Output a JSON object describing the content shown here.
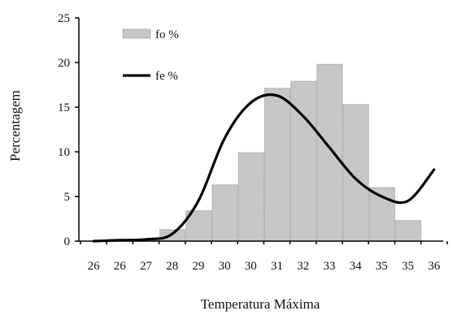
{
  "chart_data": {
    "type": "bar",
    "title": "",
    "xlabel": "Temperatura Máxima",
    "ylabel": "Percentagem",
    "ylim": [
      0,
      25
    ],
    "yticks": [
      0,
      5,
      10,
      15,
      20,
      25
    ],
    "categories": [
      "26",
      "26",
      "27",
      "28",
      "29",
      "30",
      "30",
      "31",
      "32",
      "33",
      "34",
      "35",
      "35",
      "36"
    ],
    "series": [
      {
        "name": "fo %",
        "kind": "bar",
        "values": [
          0,
          0.2,
          0.1,
          1.3,
          3.4,
          6.3,
          9.9,
          17.1,
          17.9,
          19.8,
          15.3,
          6.0,
          2.3,
          0
        ]
      },
      {
        "name": "fe %",
        "kind": "line",
        "values": [
          0,
          0.1,
          0.2,
          0.8,
          4.5,
          11.5,
          15.5,
          16.3,
          14.0,
          10.5,
          7.0,
          5.0,
          4.5,
          8.0
        ]
      }
    ],
    "legend_position": "top-left",
    "grid": false,
    "colors": {
      "bars": "#c8c6c6",
      "bar_edge": "#9a9898",
      "line": "#000000",
      "axis": "#000000"
    }
  }
}
